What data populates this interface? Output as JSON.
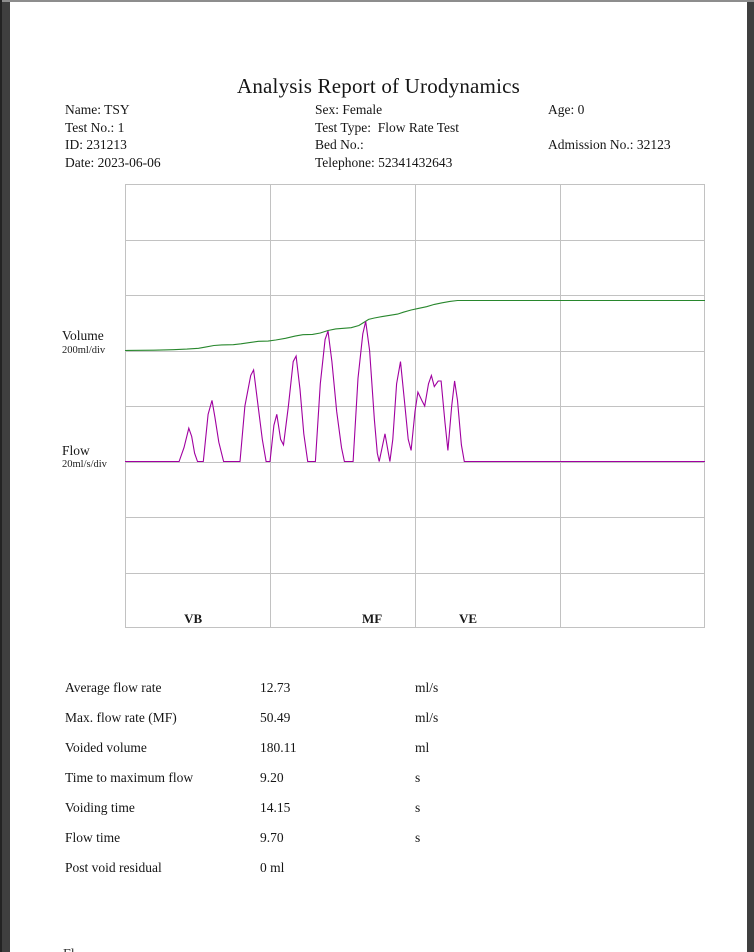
{
  "title": "Analysis Report of Urodynamics",
  "patient_info": {
    "columns": [
      {
        "lines": [
          "Name: TSY",
          "Test No.: 1",
          "ID: 231213",
          "Date: 2023-06-06"
        ]
      },
      {
        "lines": [
          "Sex: Female",
          "Test Type:  Flow Rate Test",
          "Bed No.:",
          "Telephone: 52341432643"
        ]
      },
      {
        "lines": [
          "Age: 0",
          "",
          "Admission No.: 32123",
          ""
        ]
      }
    ]
  },
  "chart_data": {
    "type": "line",
    "title": "",
    "x_axis": {
      "unit": "s",
      "range_s": [
        0,
        30
      ],
      "divisions": 4
    },
    "y_axis": {
      "divisions": 8
    },
    "grid_color": "#c2c2c2",
    "legend_position": "left-of-baselines",
    "series": [
      {
        "name": "Volume",
        "scale_label": "200ml/div",
        "units": "ml",
        "units_per_division": 200,
        "baseline_division": 3,
        "color": "#28872d",
        "points": [
          [
            0,
            0
          ],
          [
            1.5,
            1
          ],
          [
            2.5,
            3
          ],
          [
            3.2,
            5
          ],
          [
            3.8,
            8
          ],
          [
            4.2,
            13
          ],
          [
            4.6,
            18
          ],
          [
            5.0,
            20
          ],
          [
            5.6,
            21
          ],
          [
            6.0,
            24
          ],
          [
            6.4,
            28
          ],
          [
            6.9,
            33
          ],
          [
            7.4,
            34
          ],
          [
            7.8,
            38
          ],
          [
            8.3,
            44
          ],
          [
            8.8,
            52
          ],
          [
            9.2,
            57
          ],
          [
            9.7,
            58
          ],
          [
            10.1,
            63
          ],
          [
            10.5,
            72
          ],
          [
            10.9,
            78
          ],
          [
            11.3,
            80
          ],
          [
            11.7,
            82
          ],
          [
            12.1,
            90
          ],
          [
            12.4,
            103
          ],
          [
            12.6,
            112
          ],
          [
            12.9,
            117
          ],
          [
            13.3,
            122
          ],
          [
            13.7,
            127
          ],
          [
            14.1,
            131
          ],
          [
            14.4,
            138
          ],
          [
            14.8,
            146
          ],
          [
            15.2,
            152
          ],
          [
            15.6,
            158
          ],
          [
            16.0,
            166
          ],
          [
            16.4,
            172
          ],
          [
            16.8,
            177
          ],
          [
            17.2,
            180
          ],
          [
            17.6,
            180.11
          ],
          [
            30,
            180.11
          ]
        ]
      },
      {
        "name": "Flow",
        "scale_label": "20ml/s/div",
        "units": "ml/s",
        "units_per_division": 20,
        "baseline_division": 5,
        "color": "#a000a0",
        "points": [
          [
            0,
            0
          ],
          [
            2.8,
            0
          ],
          [
            3.05,
            5
          ],
          [
            3.3,
            12
          ],
          [
            3.45,
            9
          ],
          [
            3.6,
            3
          ],
          [
            3.75,
            0
          ],
          [
            4.05,
            0
          ],
          [
            4.3,
            17
          ],
          [
            4.5,
            22
          ],
          [
            4.65,
            16
          ],
          [
            4.85,
            7
          ],
          [
            5.1,
            0
          ],
          [
            5.95,
            0
          ],
          [
            6.2,
            20
          ],
          [
            6.5,
            31
          ],
          [
            6.65,
            33
          ],
          [
            6.85,
            22
          ],
          [
            7.1,
            8
          ],
          [
            7.3,
            0
          ],
          [
            7.5,
            0
          ],
          [
            7.7,
            13
          ],
          [
            7.85,
            17
          ],
          [
            8.05,
            8
          ],
          [
            8.2,
            6
          ],
          [
            8.45,
            20
          ],
          [
            8.7,
            36
          ],
          [
            8.85,
            38
          ],
          [
            9.05,
            26
          ],
          [
            9.25,
            10
          ],
          [
            9.45,
            0
          ],
          [
            9.85,
            0
          ],
          [
            10.1,
            28
          ],
          [
            10.35,
            44
          ],
          [
            10.5,
            47
          ],
          [
            10.7,
            36
          ],
          [
            10.95,
            18
          ],
          [
            11.2,
            5
          ],
          [
            11.35,
            0
          ],
          [
            11.8,
            0
          ],
          [
            12.05,
            30
          ],
          [
            12.3,
            46
          ],
          [
            12.45,
            50.5
          ],
          [
            12.65,
            40
          ],
          [
            12.9,
            15
          ],
          [
            13.05,
            3
          ],
          [
            13.15,
            0
          ],
          [
            13.3,
            5
          ],
          [
            13.45,
            10
          ],
          [
            13.6,
            4
          ],
          [
            13.7,
            0
          ],
          [
            13.85,
            8
          ],
          [
            14.05,
            28
          ],
          [
            14.25,
            36
          ],
          [
            14.45,
            22
          ],
          [
            14.65,
            8
          ],
          [
            14.8,
            4
          ],
          [
            15.0,
            18
          ],
          [
            15.15,
            25
          ],
          [
            15.35,
            22
          ],
          [
            15.5,
            20
          ],
          [
            15.7,
            28
          ],
          [
            15.85,
            31
          ],
          [
            16.0,
            27
          ],
          [
            16.2,
            29
          ],
          [
            16.35,
            29
          ],
          [
            16.55,
            14
          ],
          [
            16.7,
            4
          ],
          [
            16.9,
            20
          ],
          [
            17.05,
            29
          ],
          [
            17.2,
            22
          ],
          [
            17.4,
            6
          ],
          [
            17.55,
            0
          ],
          [
            30,
            0
          ]
        ]
      }
    ],
    "markers": [
      {
        "label": "VB",
        "t": 3.52
      },
      {
        "label": "MF",
        "t": 12.78
      },
      {
        "label": "VE",
        "t": 17.74
      }
    ]
  },
  "results": {
    "rows": [
      {
        "label": "Average flow rate",
        "value": "12.73",
        "unit": "ml/s"
      },
      {
        "label": "Max. flow rate (MF)",
        "value": "50.49",
        "unit": "ml/s"
      },
      {
        "label": "Voided volume",
        "value": "180.11",
        "unit": "ml"
      },
      {
        "label": "Time to maximum flow",
        "value": "9.20",
        "unit": "s"
      },
      {
        "label": "Voiding time",
        "value": "14.15",
        "unit": "s"
      },
      {
        "label": "Flow time",
        "value": "9.70",
        "unit": "s"
      },
      {
        "label": "Post void residual",
        "value": "0 ml",
        "unit": ""
      }
    ]
  },
  "footer": {
    "clipped_text": "Fl"
  }
}
